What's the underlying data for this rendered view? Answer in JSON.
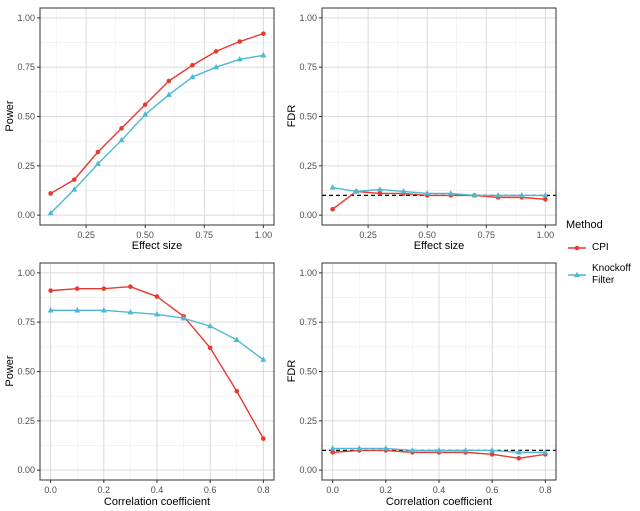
{
  "figure": {
    "legend": {
      "title": "Method",
      "items": [
        {
          "label": "CPI",
          "marker": "circle",
          "color": "#e8392e"
        },
        {
          "label": "Knockoff Filter",
          "marker": "triangle",
          "color": "#4db8d4"
        }
      ]
    },
    "style": {
      "grid_major": "#d9d9d9",
      "grid_minor": "#ececec",
      "panel_border": "#333333",
      "tick_color": "#333333",
      "tick_label_color": "#4d4d4d",
      "reference_line_color": "#000000",
      "background": "#ffffff"
    }
  },
  "chart_data": [
    {
      "id": "power-vs-effect-size",
      "type": "line",
      "title": "",
      "xlabel": "Effect size",
      "ylabel": "Power",
      "x": [
        0.1,
        0.2,
        0.3,
        0.4,
        0.5,
        0.6,
        0.7,
        0.8,
        0.9,
        1.0
      ],
      "series": [
        {
          "name": "CPI",
          "marker": "circle",
          "color": "#e8392e",
          "values": [
            0.11,
            0.18,
            0.32,
            0.44,
            0.56,
            0.68,
            0.76,
            0.83,
            0.88,
            0.92
          ]
        },
        {
          "name": "Knockoff Filter",
          "marker": "triangle",
          "color": "#4db8d4",
          "values": [
            0.01,
            0.13,
            0.26,
            0.38,
            0.51,
            0.61,
            0.7,
            0.75,
            0.79,
            0.81
          ]
        }
      ],
      "xlim": [
        0.055,
        1.045
      ],
      "ylim": [
        -0.05,
        1.05
      ],
      "xticks": [
        0.25,
        0.5,
        0.75,
        1.0
      ],
      "xtick_labels": [
        "0.25",
        "0.50",
        "0.75",
        "1.00"
      ],
      "yticks": [
        0,
        0.25,
        0.5,
        0.75,
        1.0
      ],
      "ytick_labels": [
        "0.00",
        "0.25",
        "0.50",
        "0.75",
        "1.00"
      ],
      "hline": null,
      "grid": true,
      "legend_position": "right"
    },
    {
      "id": "fdr-vs-effect-size",
      "type": "line",
      "title": "",
      "xlabel": "Effect size",
      "ylabel": "FDR",
      "x": [
        0.1,
        0.2,
        0.3,
        0.4,
        0.5,
        0.6,
        0.7,
        0.8,
        0.9,
        1.0
      ],
      "series": [
        {
          "name": "CPI",
          "marker": "circle",
          "color": "#e8392e",
          "values": [
            0.03,
            0.12,
            0.11,
            0.11,
            0.1,
            0.1,
            0.1,
            0.09,
            0.09,
            0.08
          ]
        },
        {
          "name": "Knockoff Filter",
          "marker": "triangle",
          "color": "#4db8d4",
          "values": [
            0.14,
            0.12,
            0.13,
            0.12,
            0.11,
            0.11,
            0.1,
            0.1,
            0.1,
            0.1
          ]
        }
      ],
      "xlim": [
        0.055,
        1.045
      ],
      "ylim": [
        -0.05,
        1.05
      ],
      "xticks": [
        0.25,
        0.5,
        0.75,
        1.0
      ],
      "xtick_labels": [
        "0.25",
        "0.50",
        "0.75",
        "1.00"
      ],
      "yticks": [
        0,
        0.25,
        0.5,
        0.75,
        1.0
      ],
      "ytick_labels": [
        "0.00",
        "0.25",
        "0.50",
        "0.75",
        "1.00"
      ],
      "hline": 0.1,
      "grid": true,
      "legend_position": "right"
    },
    {
      "id": "power-vs-correlation",
      "type": "line",
      "title": "",
      "xlabel": "Correlation coefficient",
      "ylabel": "Power",
      "x": [
        0.0,
        0.1,
        0.2,
        0.3,
        0.4,
        0.5,
        0.6,
        0.7,
        0.8
      ],
      "series": [
        {
          "name": "CPI",
          "marker": "circle",
          "color": "#e8392e",
          "values": [
            0.91,
            0.92,
            0.92,
            0.93,
            0.88,
            0.78,
            0.62,
            0.4,
            0.16
          ]
        },
        {
          "name": "Knockoff Filter",
          "marker": "triangle",
          "color": "#4db8d4",
          "values": [
            0.81,
            0.81,
            0.81,
            0.8,
            0.79,
            0.77,
            0.73,
            0.66,
            0.56
          ]
        }
      ],
      "xlim": [
        -0.04,
        0.84
      ],
      "ylim": [
        -0.05,
        1.05
      ],
      "xticks": [
        0.0,
        0.2,
        0.4,
        0.6,
        0.8
      ],
      "xtick_labels": [
        "0.0",
        "0.2",
        "0.4",
        "0.6",
        "0.8"
      ],
      "yticks": [
        0,
        0.25,
        0.5,
        0.75,
        1.0
      ],
      "ytick_labels": [
        "0.00",
        "0.25",
        "0.50",
        "0.75",
        "1.00"
      ],
      "hline": null,
      "grid": true,
      "legend_position": "right"
    },
    {
      "id": "fdr-vs-correlation",
      "type": "line",
      "title": "",
      "xlabel": "Correlation coefficient",
      "ylabel": "FDR",
      "x": [
        0.0,
        0.1,
        0.2,
        0.3,
        0.4,
        0.5,
        0.6,
        0.7,
        0.8
      ],
      "series": [
        {
          "name": "CPI",
          "marker": "circle",
          "color": "#e8392e",
          "values": [
            0.09,
            0.1,
            0.1,
            0.09,
            0.09,
            0.09,
            0.08,
            0.06,
            0.08
          ]
        },
        {
          "name": "Knockoff Filter",
          "marker": "triangle",
          "color": "#4db8d4",
          "values": [
            0.11,
            0.11,
            0.11,
            0.1,
            0.1,
            0.1,
            0.1,
            0.09,
            0.09
          ]
        }
      ],
      "xlim": [
        -0.04,
        0.84
      ],
      "ylim": [
        -0.05,
        1.05
      ],
      "xticks": [
        0.0,
        0.2,
        0.4,
        0.6,
        0.8
      ],
      "xtick_labels": [
        "0.0",
        "0.2",
        "0.4",
        "0.6",
        "0.8"
      ],
      "yticks": [
        0,
        0.25,
        0.5,
        0.75,
        1.0
      ],
      "ytick_labels": [
        "0.00",
        "0.25",
        "0.50",
        "0.75",
        "1.00"
      ],
      "hline": 0.1,
      "grid": true,
      "legend_position": "right"
    }
  ]
}
